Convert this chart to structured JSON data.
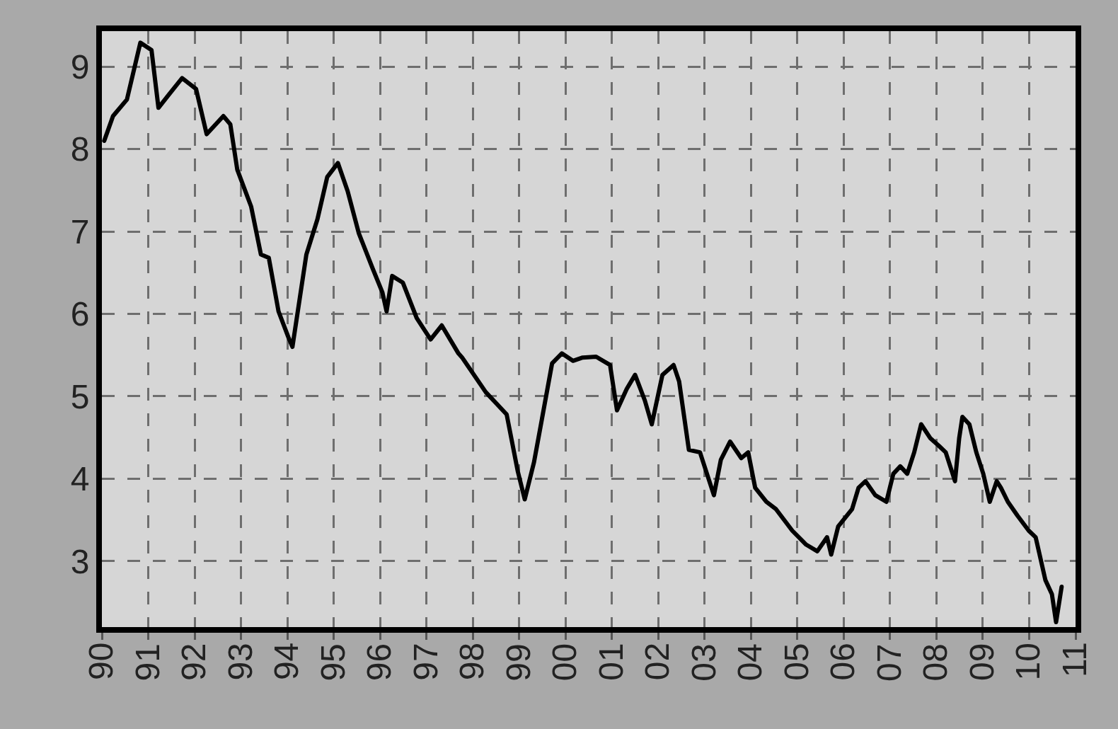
{
  "chart_data": {
    "type": "line",
    "color": "#000000",
    "x": [
      1990.05,
      1990.24,
      1990.54,
      1990.83,
      1991.07,
      1991.22,
      1991.43,
      1991.73,
      1992.03,
      1992.26,
      1992.62,
      1992.77,
      1992.92,
      1993.22,
      1993.43,
      1993.6,
      1993.81,
      1994.02,
      1994.11,
      1994.41,
      1994.65,
      1994.86,
      1995.09,
      1995.3,
      1995.54,
      1995.84,
      1996.05,
      1996.14,
      1996.26,
      1996.49,
      1996.79,
      1997.09,
      1997.33,
      1997.69,
      1997.77,
      1998.28,
      1998.73,
      1998.97,
      1999.12,
      1999.32,
      1999.47,
      1999.71,
      1999.92,
      2000.16,
      2000.37,
      2000.66,
      2000.96,
      2001.11,
      2001.32,
      2001.5,
      2001.71,
      2001.86,
      2002.09,
      2002.33,
      2002.45,
      2002.66,
      2002.9,
      2003.05,
      2003.2,
      2003.35,
      2003.55,
      2003.79,
      2003.94,
      2004.09,
      2004.33,
      2004.54,
      2004.89,
      2005.19,
      2005.43,
      2005.64,
      2005.73,
      2005.88,
      2006.18,
      2006.32,
      2006.47,
      2006.68,
      2006.92,
      2007.07,
      2007.22,
      2007.37,
      2007.52,
      2007.67,
      2007.87,
      2008.05,
      2008.2,
      2008.4,
      2008.49,
      2008.56,
      2008.71,
      2008.86,
      2009.01,
      2009.15,
      2009.3,
      2009.39,
      2009.54,
      2009.75,
      2009.99,
      2010.14,
      2010.35,
      2010.49,
      2010.58,
      2010.7
    ],
    "values": [
      8.1,
      8.4,
      8.6,
      9.29,
      9.2,
      8.5,
      8.65,
      8.86,
      8.73,
      8.18,
      8.4,
      8.3,
      7.75,
      7.3,
      6.72,
      6.68,
      6.03,
      5.72,
      5.6,
      6.72,
      7.15,
      7.66,
      7.83,
      7.49,
      6.98,
      6.55,
      6.26,
      6.03,
      6.46,
      6.38,
      5.95,
      5.69,
      5.86,
      5.52,
      5.47,
      5.05,
      4.78,
      4.09,
      3.75,
      4.2,
      4.66,
      5.4,
      5.52,
      5.43,
      5.47,
      5.48,
      5.38,
      4.83,
      5.09,
      5.26,
      4.95,
      4.66,
      5.26,
      5.38,
      5.18,
      4.35,
      4.32,
      4.06,
      3.8,
      4.23,
      4.45,
      4.25,
      4.32,
      3.89,
      3.72,
      3.63,
      3.37,
      3.2,
      3.12,
      3.29,
      3.08,
      3.42,
      3.63,
      3.89,
      3.97,
      3.8,
      3.72,
      4.06,
      4.15,
      4.06,
      4.32,
      4.66,
      4.49,
      4.4,
      4.32,
      3.97,
      4.49,
      4.75,
      4.66,
      4.32,
      4.06,
      3.72,
      3.97,
      3.89,
      3.72,
      3.55,
      3.37,
      3.29,
      2.77,
      2.6,
      2.26,
      2.69
    ],
    "xlim": [
      1990,
      2011
    ],
    "xticks": [
      {
        "value": 1990,
        "label": "90"
      },
      {
        "value": 1991,
        "label": "91"
      },
      {
        "value": 1992,
        "label": "92"
      },
      {
        "value": 1993,
        "label": "93"
      },
      {
        "value": 1994,
        "label": "94"
      },
      {
        "value": 1995,
        "label": "95"
      },
      {
        "value": 1996,
        "label": "96"
      },
      {
        "value": 1997,
        "label": "97"
      },
      {
        "value": 1998,
        "label": "98"
      },
      {
        "value": 1999,
        "label": "99"
      },
      {
        "value": 2000,
        "label": "00"
      },
      {
        "value": 2001,
        "label": "01"
      },
      {
        "value": 2002,
        "label": "02"
      },
      {
        "value": 2003,
        "label": "03"
      },
      {
        "value": 2004,
        "label": "04"
      },
      {
        "value": 2005,
        "label": "05"
      },
      {
        "value": 2006,
        "label": "06"
      },
      {
        "value": 2007,
        "label": "07"
      },
      {
        "value": 2008,
        "label": "08"
      },
      {
        "value": 2009,
        "label": "09"
      },
      {
        "value": 2010,
        "label": "10"
      },
      {
        "value": 2011,
        "label": "11"
      }
    ],
    "ylim": [
      2.2,
      9.43
    ],
    "yticks": [
      3,
      4,
      5,
      6,
      7,
      8,
      9
    ],
    "grid": true,
    "line_style": "solid",
    "marker": "none"
  }
}
